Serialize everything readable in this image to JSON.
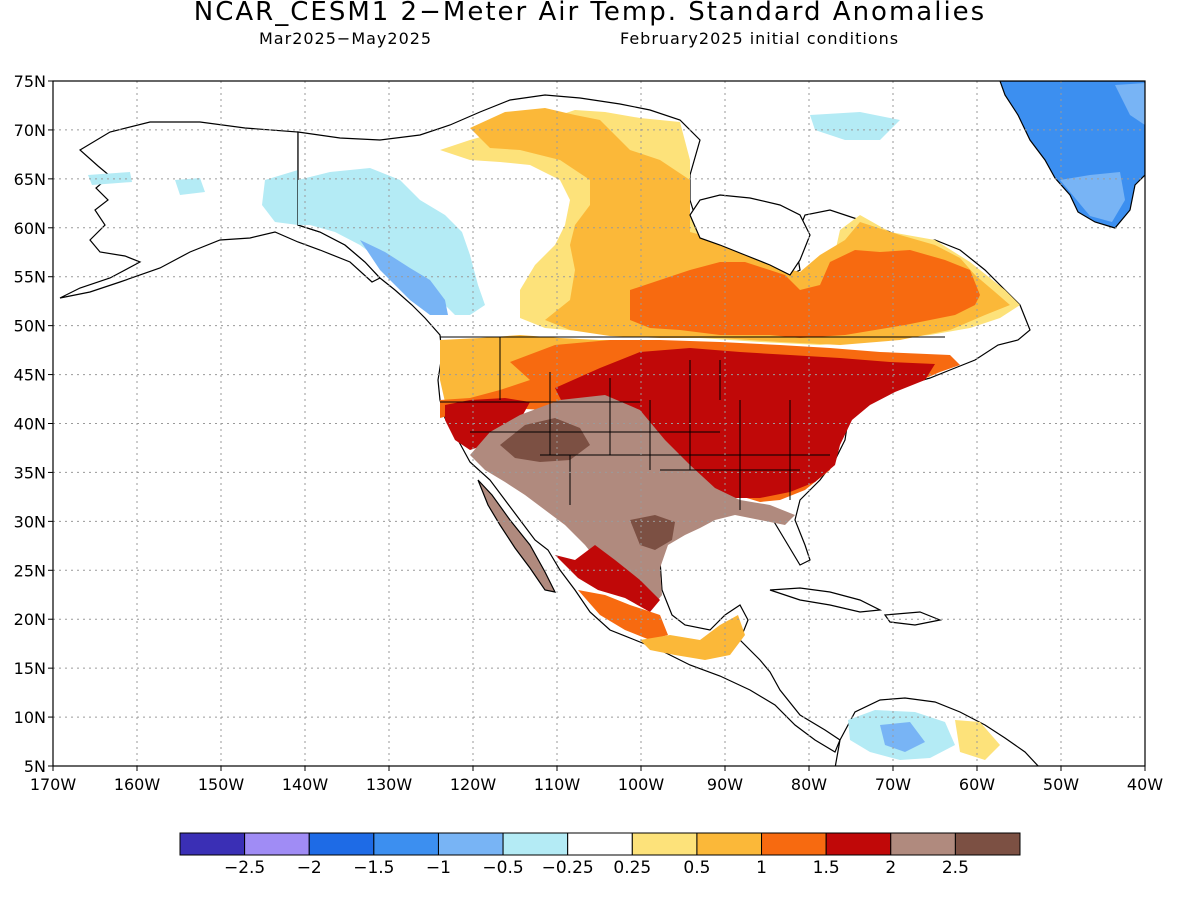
{
  "title": "NCAR_CESM1 2−Meter Air Temp. Standard Anomalies",
  "period": "Mar2025−May2025",
  "initial_conditions": "February2025 initial conditions",
  "lat_labels": [
    "75N",
    "70N",
    "65N",
    "60N",
    "55N",
    "50N",
    "45N",
    "40N",
    "35N",
    "30N",
    "25N",
    "20N",
    "15N",
    "10N",
    "5N"
  ],
  "lon_labels": [
    "170W",
    "160W",
    "150W",
    "140W",
    "130W",
    "120W",
    "110W",
    "100W",
    "90W",
    "80W",
    "70W",
    "60W",
    "50W",
    "40W"
  ],
  "colorbar": {
    "colors": [
      "#3a2fb5",
      "#a08cf5",
      "#1e6be6",
      "#3c8ff0",
      "#78b4f5",
      "#b4ebf5",
      "#ffffff",
      "#fde27a",
      "#fbb839",
      "#f76a10",
      "#c00808",
      "#b08a7e",
      "#7c5043"
    ],
    "labels": [
      "−2.5",
      "−2",
      "−1.5",
      "−1",
      "−0.5",
      "−0.25",
      "0.25",
      "0.5",
      "1",
      "1.5",
      "2",
      "2.5"
    ]
  }
}
